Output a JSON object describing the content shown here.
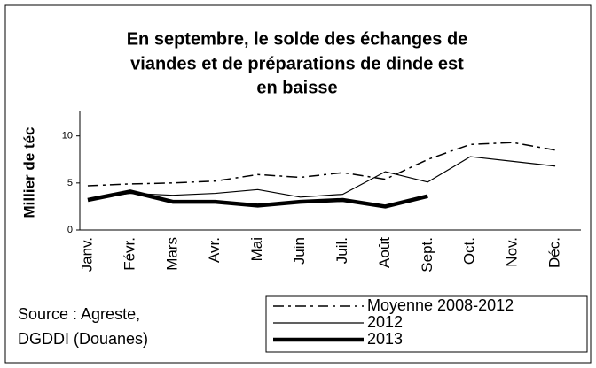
{
  "chart_data": {
    "type": "line",
    "title": [
      "En septembre, le solde des échanges de",
      "viandes et de préparations de dinde est",
      "en baisse"
    ],
    "y_label": "Millier de téc",
    "source": [
      "Source : Agreste,",
      "DGDDI (Douanes)"
    ],
    "categories": [
      "Janv.",
      "Févr.",
      "Mars",
      "Avr.",
      "Mai",
      "Juin",
      "Juil.",
      "Août",
      "Sept.",
      "Oct.",
      "Nov.",
      "Déc."
    ],
    "series": [
      {
        "name": "Moyenne 2008-2012",
        "color": "#000000",
        "values": [
          4.7,
          4.9,
          5.0,
          5.2,
          5.9,
          5.6,
          6.1,
          5.4,
          7.5,
          9.1,
          9.3,
          8.5
        ]
      },
      {
        "name": "2012",
        "color": "#000000",
        "values": [
          3.3,
          3.9,
          3.7,
          3.9,
          4.3,
          3.5,
          3.8,
          6.2,
          5.1,
          7.8,
          7.3,
          6.8
        ]
      },
      {
        "name": "2013",
        "color": "#000000",
        "values": [
          3.2,
          4.1,
          3.0,
          3.0,
          2.6,
          3.0,
          3.2,
          2.5,
          3.6,
          null,
          null,
          null
        ]
      }
    ],
    "ylim": [
      0,
      12.7
    ],
    "yticks": [
      0,
      5,
      10
    ],
    "grid": false
  }
}
